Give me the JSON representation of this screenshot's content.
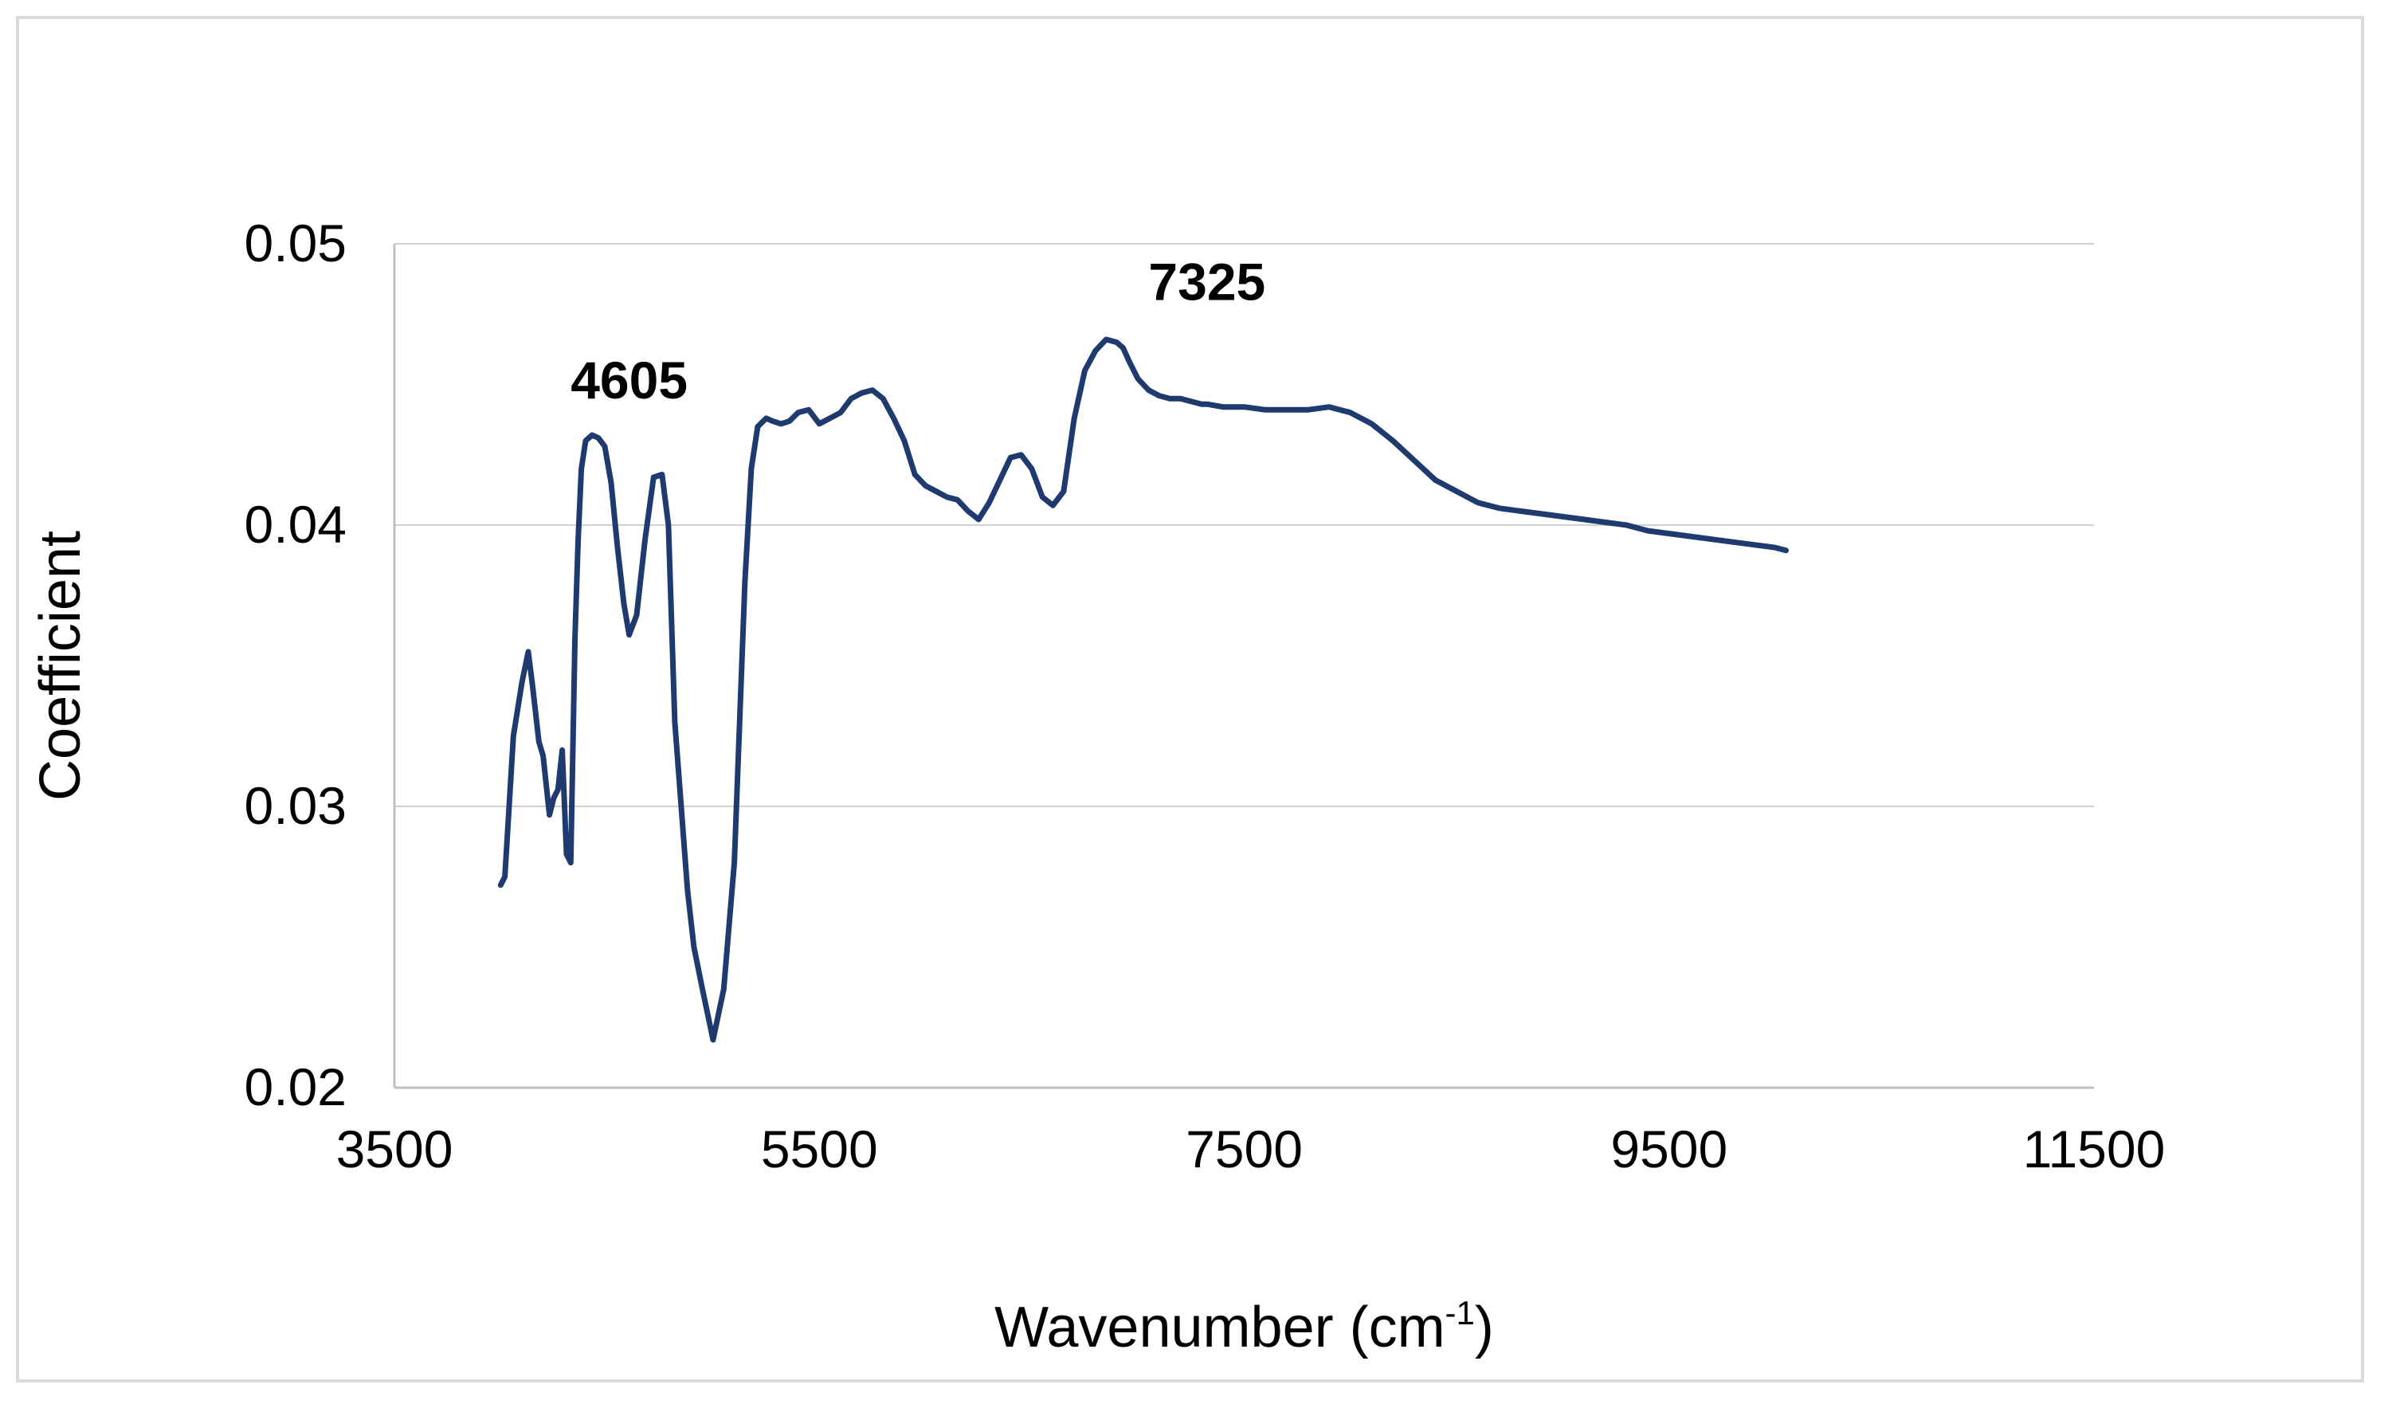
{
  "chart_data": {
    "type": "line",
    "title": "",
    "xlabel": "Wavenumber (cm",
    "xlabel_sup": "-1",
    "xlabel_close": ")",
    "ylabel": "Coefficient",
    "xlim": [
      3500,
      11500
    ],
    "ylim": [
      0.02,
      0.05
    ],
    "xticks": [
      3500,
      5500,
      7500,
      9500,
      11500
    ],
    "xtick_labels": [
      "3500",
      "5500",
      "7500",
      "9500",
      "11500"
    ],
    "yticks": [
      0.02,
      0.03,
      0.04,
      0.05
    ],
    "ytick_labels": [
      "0.02",
      "0.03",
      "0.04",
      "0.05"
    ],
    "grid": "horizontal",
    "legend": "none",
    "line_color": "#1f3a6e",
    "grid_color": "#d0d0d0",
    "annotations": [
      {
        "text": "4605",
        "x": 4605,
        "y": 0.0445
      },
      {
        "text": "7325",
        "x": 7325,
        "y": 0.048
      }
    ],
    "series": [
      {
        "x": [
          4000,
          4020,
          4060,
          4100,
          4130,
          4150,
          4180,
          4200,
          4230,
          4250,
          4270,
          4290,
          4310,
          4330,
          4350,
          4365,
          4380,
          4400,
          4430,
          4460,
          4490,
          4520,
          4550,
          4580,
          4605,
          4640,
          4680,
          4720,
          4760,
          4790,
          4820,
          4850,
          4880,
          4910,
          4950,
          5000,
          5050,
          5100,
          5150,
          5180,
          5210,
          5250,
          5280,
          5320,
          5360,
          5400,
          5450,
          5500,
          5550,
          5600,
          5650,
          5700,
          5750,
          5800,
          5850,
          5900,
          5950,
          6000,
          6050,
          6100,
          6150,
          6200,
          6250,
          6300,
          6350,
          6400,
          6450,
          6500,
          6550,
          6600,
          6650,
          6700,
          6750,
          6800,
          6850,
          6900,
          6930,
          6960,
          7000,
          7050,
          7100,
          7150,
          7200,
          7250,
          7300,
          7325,
          7400,
          7500,
          7600,
          7700,
          7800,
          7900,
          8000,
          8100,
          8200,
          8300,
          8400,
          8500,
          8600,
          8700,
          8800,
          8900,
          9000,
          9100,
          9200,
          9300,
          9400,
          9500,
          9600,
          9700,
          9800,
          9900,
          10000,
          10050
        ],
        "y": [
          0.0272,
          0.0275,
          0.0325,
          0.0344,
          0.0355,
          0.0343,
          0.0323,
          0.0318,
          0.0297,
          0.0303,
          0.0306,
          0.032,
          0.0283,
          0.028,
          0.036,
          0.0395,
          0.042,
          0.043,
          0.0432,
          0.0431,
          0.0428,
          0.0415,
          0.0392,
          0.0372,
          0.0361,
          0.0368,
          0.0395,
          0.0417,
          0.0418,
          0.04,
          0.033,
          0.03,
          0.027,
          0.025,
          0.0235,
          0.0217,
          0.0235,
          0.028,
          0.038,
          0.042,
          0.0435,
          0.0438,
          0.0437,
          0.0436,
          0.0437,
          0.044,
          0.0441,
          0.0436,
          0.0438,
          0.044,
          0.0445,
          0.0447,
          0.0448,
          0.0445,
          0.0438,
          0.043,
          0.0418,
          0.0414,
          0.0412,
          0.041,
          0.0409,
          0.0405,
          0.0402,
          0.0408,
          0.0416,
          0.0424,
          0.0425,
          0.042,
          0.041,
          0.0407,
          0.0412,
          0.0438,
          0.0455,
          0.0462,
          0.0466,
          0.0465,
          0.0463,
          0.0458,
          0.0452,
          0.0448,
          0.0446,
          0.0445,
          0.0445,
          0.0444,
          0.0443,
          0.0443,
          0.0442,
          0.0442,
          0.0441,
          0.0441,
          0.0441,
          0.0442,
          0.044,
          0.0436,
          0.043,
          0.0423,
          0.0416,
          0.0412,
          0.0408,
          0.0406,
          0.0405,
          0.0404,
          0.0403,
          0.0402,
          0.0401,
          0.04,
          0.0398,
          0.0397,
          0.0396,
          0.0395,
          0.0394,
          0.0393,
          0.0392,
          0.0391
        ]
      }
    ]
  }
}
